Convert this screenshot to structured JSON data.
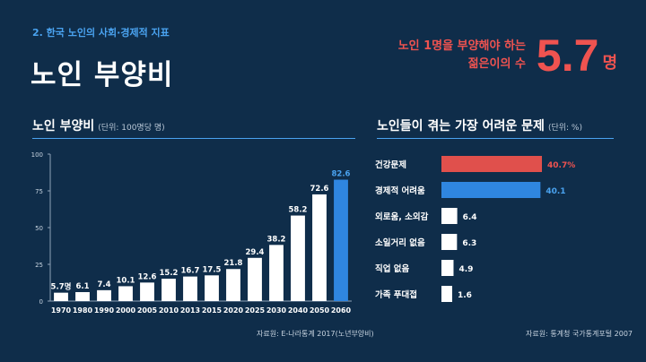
{
  "header": {
    "section_label": "2. 한국 노인의 사회·경제적 지표",
    "title": "노인 부양비",
    "headline_line1": "노인 1명을 부양해야 하는",
    "headline_line2": "젊은이의 수",
    "headline_value": "5.7",
    "headline_unit": "명"
  },
  "left_panel": {
    "title": "노인 부양비",
    "unit": "(단위: 100명당 명)",
    "source": "자료원:  E-나라통계 2017(노년부양비)"
  },
  "right_panel": {
    "title": "노인들이 겪는 가장 어려운 문제",
    "unit": "(단위: %)",
    "source": "자료원:  통계청 국가통계포털 2007"
  },
  "colors": {
    "background": "#0f2d4a",
    "bar_default": "#ffffff",
    "bar_highlight_blue": "#2f86e0",
    "bar_highlight_red": "#e0504c",
    "accent_text": "#ef5350",
    "rule": "#4aa3f0"
  },
  "chart_data": [
    {
      "type": "bar",
      "categories": [
        "1970",
        "1980",
        "1990",
        "2000",
        "2005",
        "2010",
        "2013",
        "2015",
        "2020",
        "2025",
        "2030",
        "2040",
        "2050",
        "2060"
      ],
      "values": [
        5.7,
        6.1,
        7.4,
        10.1,
        12.6,
        15.2,
        16.7,
        17.5,
        21.8,
        29.4,
        38.2,
        58.2,
        72.6,
        82.6
      ],
      "value_labels": [
        "5.7명",
        "6.1",
        "7.4",
        "10.1",
        "12.6",
        "15.2",
        "16.7",
        "17.5",
        "21.8",
        "29.4",
        "38.2",
        "58.2",
        "72.6",
        "82.6"
      ],
      "highlight_index": 13,
      "title": "노인 부양비",
      "ylim": [
        0,
        100
      ],
      "yticks": [
        0,
        25,
        50,
        75,
        100
      ],
      "grid": false
    },
    {
      "type": "bar",
      "orientation": "horizontal",
      "categories": [
        "건강문제",
        "경제적 어려움",
        "외로움, 소외감",
        "소일거리 없음",
        "직업 없음",
        "가족 푸대접"
      ],
      "values": [
        40.7,
        40.1,
        6.4,
        6.3,
        4.9,
        1.6
      ],
      "value_labels": [
        "40.7%",
        "40.1",
        "6.4",
        "6.3",
        "4.9",
        "1.6"
      ],
      "bar_colors": [
        "#e0504c",
        "#2f86e0",
        "#ffffff",
        "#ffffff",
        "#ffffff",
        "#ffffff"
      ],
      "title": "노인들이 겪는 가장 어려운 문제",
      "xlim": [
        0,
        40.7
      ]
    }
  ]
}
